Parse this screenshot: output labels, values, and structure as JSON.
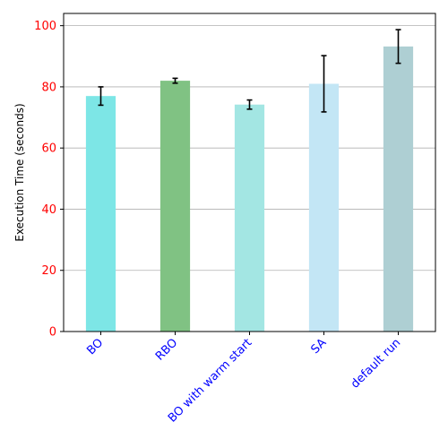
{
  "chart_data": {
    "type": "bar",
    "categories": [
      "BO",
      "RBO",
      "BO with warm start",
      "SA",
      "default run"
    ],
    "values": [
      77.0,
      82.0,
      74.2,
      81.0,
      93.2
    ],
    "errors": [
      3.0,
      0.8,
      1.5,
      9.2,
      5.5
    ],
    "bar_colors": [
      "#7de6e6",
      "#80c283",
      "#a3e6e3",
      "#c3e6f5",
      "#aecfd3"
    ],
    "title": "",
    "xlabel": "",
    "ylabel": "Execution Time (seconds)",
    "ylim": [
      0,
      104
    ],
    "yticks": [
      "0",
      "20",
      "40",
      "60",
      "80",
      "100"
    ],
    "grid": "horizontal",
    "ytick_color": "#ff0000",
    "xtick_color": "#0000ff"
  }
}
